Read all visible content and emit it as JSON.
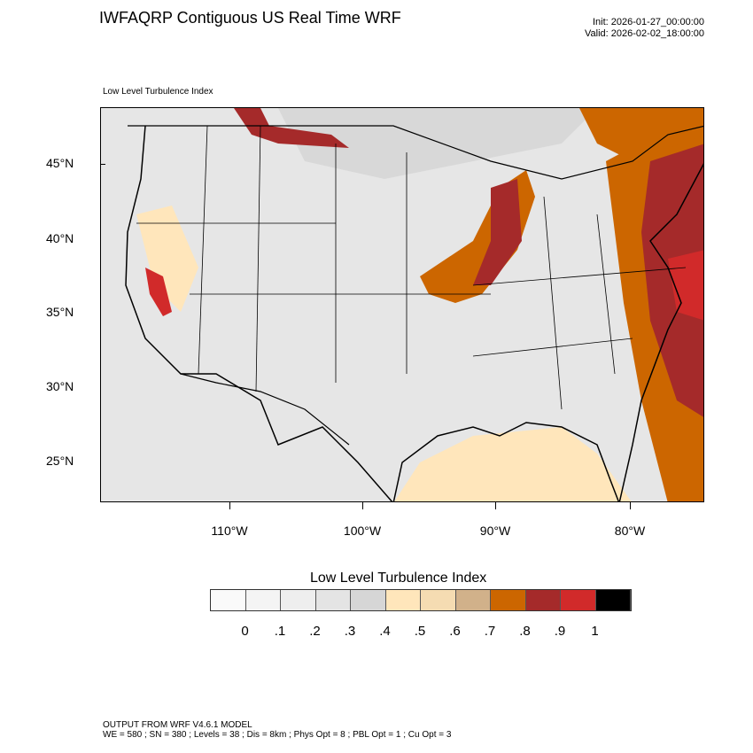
{
  "header": {
    "title": "IWFAQRP Contiguous US Real Time WRF",
    "init": "Init: 2026-01-27_00:00:00",
    "valid": "Valid: 2026-02-02_18:00:00"
  },
  "map": {
    "subtitle": "Low Level Turbulence Index",
    "lat_labels": [
      "45°N",
      "40°N",
      "35°N",
      "30°N",
      "25°N"
    ],
    "lon_labels": [
      "110°W",
      "100°W",
      "90°W",
      "80°W"
    ]
  },
  "colorbar": {
    "title": "Low Level Turbulence Index",
    "colors": [
      "#fafafa",
      "#f4f4f4",
      "#eeeeee",
      "#e4e4e4",
      "#d6d6d6",
      "#ffe6bb",
      "#f5dcb2",
      "#d1b18a",
      "#cc6600",
      "#a52a2a",
      "#d12a2a",
      "#000000"
    ],
    "labels": [
      "0",
      ".1",
      ".2",
      ".3",
      ".4",
      ".5",
      ".6",
      ".7",
      ".8",
      ".9",
      "1"
    ]
  },
  "footer": {
    "line1": "OUTPUT FROM WRF V4.6.1 MODEL",
    "line2": "WE = 580 ; SN = 380 ; Levels = 38 ; Dis = 8km ; Phys Opt = 8 ; PBL Opt = 1 ; Cu Opt = 3"
  }
}
